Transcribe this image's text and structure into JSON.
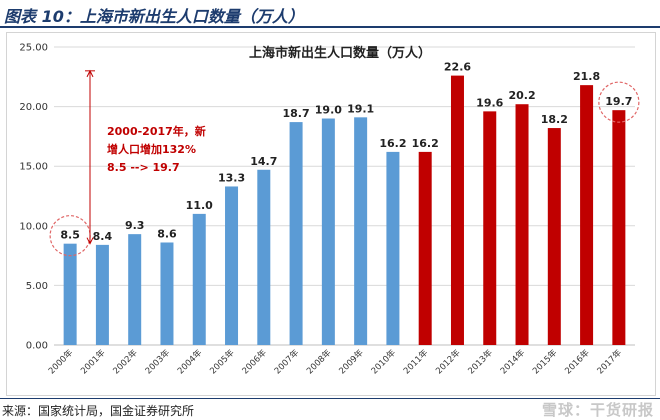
{
  "figure": {
    "title": "图表 10：上海市新出生人口数量（万人）",
    "source": "来源：国家统计局，国金证券研究所",
    "watermark": "雪球：干货研报"
  },
  "colors": {
    "blue": "#5b9bd5",
    "red": "#c00000",
    "grid": "#d9d9d9",
    "circle": "#e06666"
  },
  "chart_data": {
    "type": "bar",
    "title": "上海市新出生人口数量（万人）",
    "xlabel": "",
    "ylabel": "",
    "ylim": [
      0,
      25
    ],
    "yticks": [
      "0.00",
      "5.00",
      "10.00",
      "15.00",
      "20.00",
      "25.00"
    ],
    "grid": true,
    "categories": [
      "2000年",
      "2001年",
      "2002年",
      "2003年",
      "2004年",
      "2005年",
      "2006年",
      "2007年",
      "2008年",
      "2009年",
      "2010年",
      "2011年",
      "2012年",
      "2013年",
      "2014年",
      "2015年",
      "2016年",
      "2017年"
    ],
    "values": [
      8.5,
      8.4,
      9.3,
      8.6,
      11.0,
      13.3,
      14.7,
      18.7,
      19.0,
      19.1,
      16.2,
      16.2,
      22.6,
      19.6,
      20.2,
      18.2,
      21.8,
      19.7
    ],
    "labels": [
      "8.5",
      "8.4",
      "9.3",
      "8.6",
      "11.0",
      "13.3",
      "14.7",
      "18.7",
      "19.0",
      "19.1",
      "16.2",
      "16.2",
      "22.6",
      "19.6",
      "20.2",
      "18.2",
      "21.8",
      "19.7"
    ],
    "bar_colors": [
      "blue",
      "blue",
      "blue",
      "blue",
      "blue",
      "blue",
      "blue",
      "blue",
      "blue",
      "blue",
      "blue",
      "red",
      "red",
      "red",
      "red",
      "red",
      "red",
      "red"
    ],
    "annotation": {
      "lines": [
        "2000-2017年，新",
        "增人口增加132%",
        "8.5  --> 19.7"
      ],
      "arrow_from": 8.5,
      "arrow_to": 23,
      "circled": [
        "2000年",
        "2017年"
      ]
    }
  }
}
